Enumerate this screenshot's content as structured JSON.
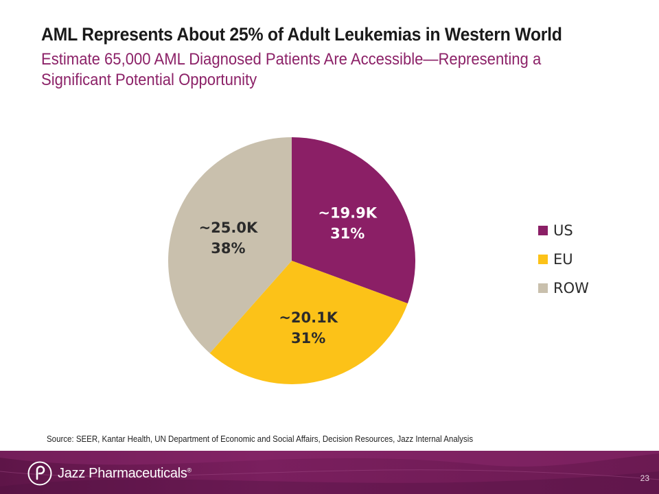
{
  "slide": {
    "title": "AML Represents About 25% of Adult Leukemias in Western World",
    "subtitle": "Estimate 65,000 AML Diagnosed Patients Are Accessible—Representing a Significant Potential Opportunity",
    "source": "Source: SEER, Kantar Health, UN Department of Economic and Social Affairs, Decision Resources, Jazz Internal Analysis",
    "page_number": "23"
  },
  "footer": {
    "company": "Jazz Pharmaceuticals",
    "trademark": "®"
  },
  "colors": {
    "US": "#8b1f66",
    "EU": "#fcc218",
    "ROW": "#c9c0ad",
    "label_on_dark": "#ffffff",
    "label_on_light": "#2b2b2b"
  },
  "chart_data": {
    "type": "pie",
    "title": "",
    "categories": [
      "US",
      "EU",
      "ROW"
    ],
    "values": [
      19.9,
      20.1,
      25.0
    ],
    "unit": "K patients",
    "slice_labels": [
      {
        "value": "~19.9K",
        "percent": "31%"
      },
      {
        "value": "~20.1K",
        "percent": "31%"
      },
      {
        "value": "~25.0K",
        "percent": "38%"
      }
    ],
    "legend": [
      "US",
      "EU",
      "ROW"
    ],
    "legend_position": "right",
    "start_angle": "12 o'clock",
    "direction": "clockwise"
  }
}
